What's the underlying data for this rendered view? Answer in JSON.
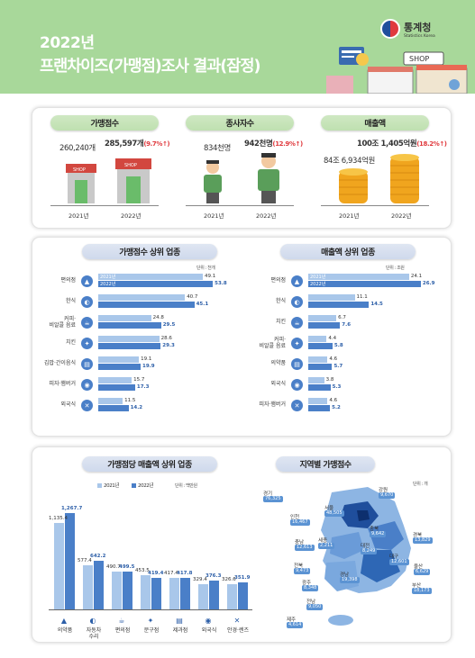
{
  "header": {
    "line1": "2022년",
    "line2": "프랜차이즈(가맹점)조사 결과(잠정)",
    "org": "통계청",
    "org_en": "Statistics Korea",
    "shop_sign": "SHOP"
  },
  "summary": {
    "stores": {
      "label": "가맹점수",
      "v2021": "260,240개",
      "v2022": "285,597개",
      "rate": "(9.7%↑)",
      "y1": "2021년",
      "y2": "2022년",
      "shop1": "SHOP",
      "shop2": "SHOP"
    },
    "employees": {
      "label": "종사자수",
      "v2021": "834천명",
      "v2022": "942천명",
      "rate": "(12.9%↑)",
      "y1": "2021년",
      "y2": "2022년"
    },
    "sales": {
      "label": "매출액",
      "v2021": "84조 6,934억원",
      "v2022": "100조 1,405억원",
      "rate": "(18.2%↑)",
      "y1": "2021년",
      "y2": "2022년"
    }
  },
  "legend": {
    "y2021": "2021년",
    "y2022": "2022년"
  },
  "chart_data": [
    {
      "type": "bar",
      "title": "가맹점수 상위 업종",
      "unit": "단위 : 천개",
      "categories": [
        "편의점",
        "한식",
        "커피·\n비알콜 음료",
        "치킨",
        "김밥·간이음식",
        "피자·햄버거",
        "외국식"
      ],
      "series": [
        {
          "name": "2021년",
          "values": [
            49.1,
            40.7,
            24.8,
            28.6,
            19.1,
            15.7,
            11.5
          ]
        },
        {
          "name": "2022년",
          "values": [
            53.8,
            45.1,
            29.5,
            29.3,
            19.9,
            17.3,
            14.2
          ]
        }
      ]
    },
    {
      "type": "bar",
      "title": "매출액 상위 업종",
      "unit": "단위 : 조원",
      "categories": [
        "편의점",
        "한식",
        "치킨",
        "커피·\n비알콜 음료",
        "의약품",
        "외국식",
        "피자·햄버거"
      ],
      "series": [
        {
          "name": "2021년",
          "values": [
            24.1,
            11.1,
            6.7,
            4.4,
            4.6,
            3.8,
            4.6
          ]
        },
        {
          "name": "2022년",
          "values": [
            26.9,
            14.5,
            7.6,
            5.8,
            5.7,
            5.3,
            5.2
          ]
        }
      ]
    },
    {
      "type": "bar",
      "title": "가맹점당 매출액 상위 업종",
      "unit": "단위 : 백만원",
      "categories": [
        "의약품",
        "자동차\n수리",
        "편의점",
        "문구점",
        "제과점",
        "외국식",
        "안경·렌즈"
      ],
      "series": [
        {
          "name": "2021년",
          "values": [
            1135.4,
            577.4,
            490.7,
            453.5,
            417.4,
            329.4,
            326.6
          ]
        },
        {
          "name": "2022년",
          "values": [
            1267.7,
            642.2,
            499.5,
            419.4,
            417.8,
            376.3,
            351.9
          ]
        }
      ],
      "labels2021": [
        "1,135.4",
        "577.4",
        "490.7",
        "453.5",
        "417.4",
        "329.4",
        "326.6"
      ],
      "labels2022": [
        "1,267.7",
        "642.2",
        "499.5",
        "419.4",
        "417.8",
        "376.3",
        "351.9"
      ]
    }
  ],
  "map": {
    "title": "지역별 가맹점수",
    "unit": "단위 : 개",
    "regions": [
      {
        "name": "경기",
        "value": "76,325"
      },
      {
        "name": "인천",
        "value": "16,467"
      },
      {
        "name": "서울",
        "value": "48,505"
      },
      {
        "name": "강원",
        "value": "9,670"
      },
      {
        "name": "충북",
        "value": "9,642"
      },
      {
        "name": "세종",
        "value": "2,211"
      },
      {
        "name": "충남",
        "value": "12,613"
      },
      {
        "name": "대전",
        "value": "8,249"
      },
      {
        "name": "경북",
        "value": "13,829"
      },
      {
        "name": "대구",
        "value": "12,601"
      },
      {
        "name": "전북",
        "value": "9,473"
      },
      {
        "name": "경남",
        "value": "19,398"
      },
      {
        "name": "울산",
        "value": "6,629"
      },
      {
        "name": "광주",
        "value": "8,348"
      },
      {
        "name": "부산",
        "value": "18,173"
      },
      {
        "name": "전남",
        "value": "9,050"
      },
      {
        "name": "제주",
        "value": "4,614"
      }
    ]
  }
}
